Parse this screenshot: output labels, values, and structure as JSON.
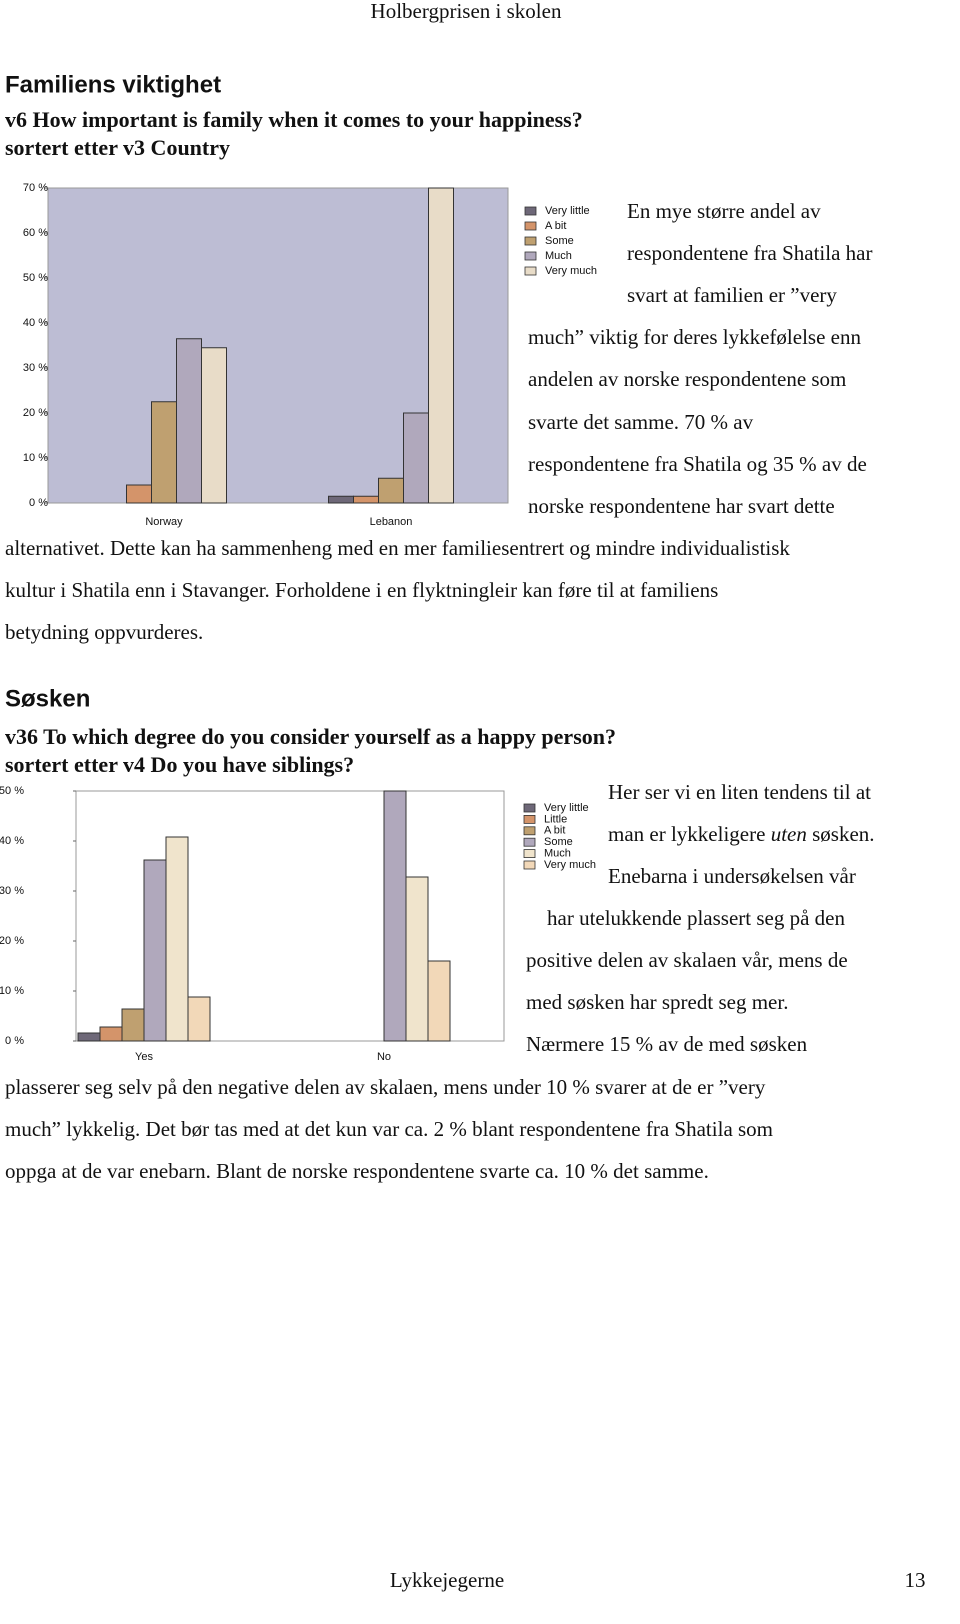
{
  "header": {
    "title": "Holbergprisen i skolen"
  },
  "sections": [
    {
      "heading": "Familiens viktighet",
      "lines": [
        "En mye større andel av",
        "respondentene fra Shatila har",
        "svart at familien er ”very",
        "much” viktig for deres lykkefølelse enn",
        "andelen av norske respondentene som",
        "svarte det samme. 70 % av",
        "respondentene fra Shatila og 35 % av de",
        "norske respondentene har svart dette",
        "alternativet. Dette kan ha sammenheng med en mer familiesentrert og mindre individualistisk",
        "kultur i Shatila enn i Stavanger. Forholdene i en flyktningleir kan føre til at familiens",
        "betydning oppvurderes."
      ]
    },
    {
      "heading": "Søsken",
      "lines": [
        "Her ser vi en liten tendens til at",
        [
          "man er lykkeligere ",
          "uten",
          " søsken."
        ],
        "Enebarna i undersøkelsen vår",
        "har utelukkende plassert seg på den",
        "positive delen av skalaen vår, mens de",
        "med søsken har spredt seg mer.",
        "Nærmere 15 % av de med søsken",
        "plasserer seg selv på den negative delen av skalaen, mens under 10 % svarer at de er ”very",
        "much” lykkelig. Det bør tas med at det kun var ca. 2 % blant respondentene fra Shatila som",
        "oppga at de var enebarn. Blant de norske respondentene svarte ca. 10 % det samme."
      ]
    }
  ],
  "chart_data": [
    {
      "type": "bar",
      "title": "v6 How important is family when it comes to your happiness?",
      "subtitle": "sortert etter v3 Country",
      "categories": [
        "Norway",
        "Lebanon"
      ],
      "series": [
        {
          "name": "Very little",
          "color": "#6e6878",
          "values": [
            0,
            1.5
          ]
        },
        {
          "name": "A bit",
          "color": "#d4946a",
          "values": [
            4,
            1.5
          ]
        },
        {
          "name": "Some",
          "color": "#bfa070",
          "values": [
            22.5,
            5.5
          ]
        },
        {
          "name": "Much",
          "color": "#b0a8bc",
          "values": [
            36.5,
            20
          ]
        },
        {
          "name": "Very much",
          "color": "#e8dcc8",
          "values": [
            34.5,
            70
          ]
        }
      ],
      "ylim": [
        0,
        70
      ],
      "yticks": [
        {
          "value": 0,
          "label": "0 %"
        },
        {
          "value": 10,
          "label": "10 %"
        },
        {
          "value": 20,
          "label": "20 %"
        },
        {
          "value": 30,
          "label": "30 %"
        },
        {
          "value": 40,
          "label": "40 %"
        },
        {
          "value": 50,
          "label": "50 %"
        },
        {
          "value": 60,
          "label": "60 %"
        },
        {
          "value": 70,
          "label": "70 %"
        }
      ],
      "grid": false,
      "legend": "right",
      "background": "#bdbdd4"
    },
    {
      "type": "bar",
      "title": "v36 To which degree do you consider yourself as a happy person?",
      "subtitle": "sortert etter v4 Do you have siblings?",
      "categories": [
        "Yes",
        "No"
      ],
      "series": [
        {
          "name": "Very little",
          "color": "#6e6878",
          "values": [
            1.6,
            0
          ]
        },
        {
          "name": "Little",
          "color": "#d4946a",
          "values": [
            2.8,
            0
          ]
        },
        {
          "name": "A bit",
          "color": "#bfa070",
          "values": [
            6.4,
            0
          ]
        },
        {
          "name": "Some",
          "color": "#b0a8bc",
          "values": [
            36.2,
            50
          ]
        },
        {
          "name": "Much",
          "color": "#f0e4cc",
          "values": [
            40.8,
            32.8
          ]
        },
        {
          "name": "Very much",
          "color": "#f2d8b8",
          "values": [
            8.8,
            16
          ]
        }
      ],
      "ylim": [
        0,
        50
      ],
      "yticks": [
        {
          "value": 0,
          "label": "0 %"
        },
        {
          "value": 10,
          "label": "10 %"
        },
        {
          "value": 20,
          "label": "20 %"
        },
        {
          "value": 30,
          "label": "30 %"
        },
        {
          "value": 40,
          "label": "40 %"
        },
        {
          "value": 50,
          "label": "50 %"
        }
      ],
      "grid": false,
      "legend": "right",
      "background": "#ffffff"
    }
  ],
  "footer": {
    "title": "Lykkejegerne",
    "page": 13
  }
}
